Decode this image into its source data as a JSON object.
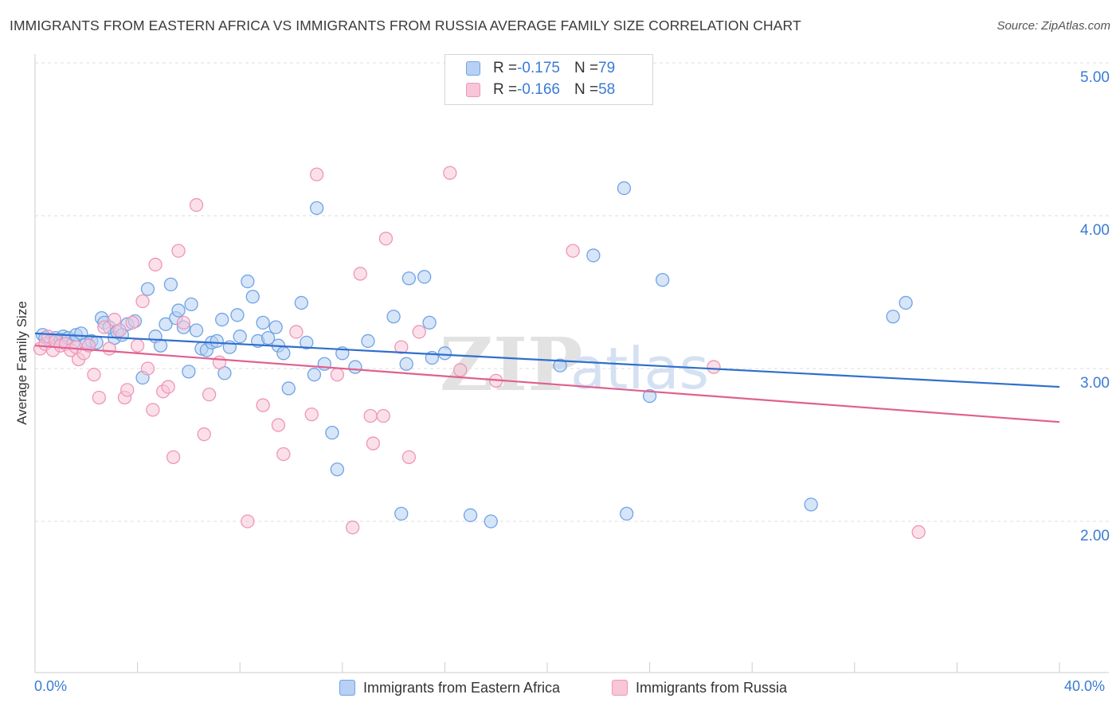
{
  "header": {
    "title": "IMMIGRANTS FROM EASTERN AFRICA VS IMMIGRANTS FROM RUSSIA AVERAGE FAMILY SIZE CORRELATION CHART",
    "source": "Source: ZipAtlas.com"
  },
  "colors": {
    "blue": "#6fa3e6",
    "blue_fill": "#b7d0f3",
    "blue_line": "#2f6fcc",
    "pink": "#ee96b6",
    "pink_fill": "#f8c6d8",
    "pink_line": "#e0608f",
    "axis_text": "#3a7bd5"
  },
  "legend": {
    "blue": {
      "r_label": "R = ",
      "r_value": "-0.175",
      "n_label": "N = ",
      "n_value": "79"
    },
    "pink": {
      "r_label": "R = ",
      "r_value": "-0.166",
      "n_label": "N = ",
      "n_value": "58"
    }
  },
  "chart_data": {
    "type": "scatter",
    "title": "IMMIGRANTS FROM EASTERN AFRICA VS IMMIGRANTS FROM RUSSIA AVERAGE FAMILY SIZE CORRELATION CHART",
    "xlabel": "",
    "ylabel": "Average Family Size",
    "xlim": [
      0,
      40
    ],
    "ylim": [
      1,
      5.1
    ],
    "x_tick_labels": [
      "0.0%",
      "40.0%"
    ],
    "y_ticks": [
      2,
      3,
      4,
      5
    ],
    "y_tick_labels": [
      "2.00",
      "3.00",
      "4.00",
      "5.00"
    ],
    "grid": "horizontal dashed",
    "watermark": "ZIPatlas",
    "series": [
      {
        "name": "Immigrants from Eastern Africa",
        "color": "#6fa3e6",
        "trend": {
          "x": [
            0,
            40
          ],
          "y": [
            3.23,
            2.88
          ]
        },
        "points": [
          [
            0.3,
            3.22
          ],
          [
            0.4,
            3.2
          ],
          [
            0.6,
            3.18
          ],
          [
            0.8,
            3.2
          ],
          [
            1.0,
            3.19
          ],
          [
            1.1,
            3.21
          ],
          [
            1.3,
            3.2
          ],
          [
            1.5,
            3.17
          ],
          [
            1.6,
            3.22
          ],
          [
            1.8,
            3.23
          ],
          [
            2.0,
            3.16
          ],
          [
            2.2,
            3.18
          ],
          [
            2.4,
            3.17
          ],
          [
            2.6,
            3.33
          ],
          [
            2.7,
            3.3
          ],
          [
            2.9,
            3.27
          ],
          [
            3.1,
            3.2
          ],
          [
            3.2,
            3.24
          ],
          [
            3.4,
            3.22
          ],
          [
            3.6,
            3.29
          ],
          [
            3.9,
            3.31
          ],
          [
            4.2,
            2.94
          ],
          [
            4.4,
            3.52
          ],
          [
            4.7,
            3.21
          ],
          [
            4.9,
            3.15
          ],
          [
            5.1,
            3.29
          ],
          [
            5.3,
            3.55
          ],
          [
            5.5,
            3.33
          ],
          [
            5.6,
            3.38
          ],
          [
            5.8,
            3.27
          ],
          [
            6.0,
            2.98
          ],
          [
            6.1,
            3.42
          ],
          [
            6.3,
            3.25
          ],
          [
            6.5,
            3.13
          ],
          [
            6.7,
            3.12
          ],
          [
            6.9,
            3.17
          ],
          [
            7.1,
            3.18
          ],
          [
            7.3,
            3.32
          ],
          [
            7.4,
            2.97
          ],
          [
            7.6,
            3.14
          ],
          [
            7.9,
            3.35
          ],
          [
            8.0,
            3.21
          ],
          [
            8.3,
            3.57
          ],
          [
            8.5,
            3.47
          ],
          [
            8.7,
            3.18
          ],
          [
            8.9,
            3.3
          ],
          [
            9.1,
            3.2
          ],
          [
            9.4,
            3.27
          ],
          [
            9.5,
            3.15
          ],
          [
            9.7,
            3.1
          ],
          [
            9.9,
            2.87
          ],
          [
            10.4,
            3.43
          ],
          [
            10.6,
            3.17
          ],
          [
            10.9,
            2.96
          ],
          [
            11.0,
            4.05
          ],
          [
            11.3,
            3.03
          ],
          [
            11.6,
            2.58
          ],
          [
            11.8,
            2.34
          ],
          [
            12.0,
            3.1
          ],
          [
            12.5,
            3.01
          ],
          [
            13.0,
            3.18
          ],
          [
            14.0,
            3.34
          ],
          [
            14.3,
            2.05
          ],
          [
            14.5,
            3.03
          ],
          [
            14.6,
            3.59
          ],
          [
            15.2,
            3.6
          ],
          [
            15.4,
            3.3
          ],
          [
            15.5,
            3.07
          ],
          [
            16.0,
            3.1
          ],
          [
            17.0,
            2.04
          ],
          [
            17.8,
            2.0
          ],
          [
            20.5,
            3.02
          ],
          [
            21.8,
            3.74
          ],
          [
            23.0,
            4.18
          ],
          [
            23.1,
            2.05
          ],
          [
            24.0,
            2.82
          ],
          [
            24.5,
            3.58
          ],
          [
            30.3,
            2.11
          ],
          [
            33.5,
            3.34
          ],
          [
            34.0,
            3.43
          ]
        ]
      },
      {
        "name": "Immigrants from Russia",
        "color": "#ee96b6",
        "trend": {
          "x": [
            0,
            40
          ],
          "y": [
            3.15,
            2.65
          ]
        },
        "points": [
          [
            0.2,
            3.13
          ],
          [
            0.4,
            3.16
          ],
          [
            0.5,
            3.21
          ],
          [
            0.7,
            3.12
          ],
          [
            0.8,
            3.18
          ],
          [
            1.0,
            3.15
          ],
          [
            1.2,
            3.16
          ],
          [
            1.4,
            3.12
          ],
          [
            1.6,
            3.14
          ],
          [
            1.7,
            3.06
          ],
          [
            1.9,
            3.1
          ],
          [
            2.1,
            3.15
          ],
          [
            2.3,
            2.96
          ],
          [
            2.5,
            2.81
          ],
          [
            2.7,
            3.27
          ],
          [
            2.9,
            3.13
          ],
          [
            3.1,
            3.32
          ],
          [
            3.3,
            3.25
          ],
          [
            3.5,
            2.81
          ],
          [
            3.6,
            2.86
          ],
          [
            3.8,
            3.3
          ],
          [
            4.0,
            3.15
          ],
          [
            4.2,
            3.44
          ],
          [
            4.4,
            3.0
          ],
          [
            4.6,
            2.73
          ],
          [
            4.7,
            3.68
          ],
          [
            5.0,
            2.85
          ],
          [
            5.2,
            2.88
          ],
          [
            5.4,
            2.42
          ],
          [
            5.6,
            3.77
          ],
          [
            5.8,
            3.3
          ],
          [
            6.3,
            4.07
          ],
          [
            6.6,
            2.57
          ],
          [
            6.8,
            2.83
          ],
          [
            7.2,
            3.04
          ],
          [
            8.3,
            2.0
          ],
          [
            8.9,
            2.76
          ],
          [
            9.5,
            2.63
          ],
          [
            9.7,
            2.44
          ],
          [
            10.2,
            3.24
          ],
          [
            10.8,
            2.7
          ],
          [
            11.0,
            4.27
          ],
          [
            11.8,
            2.96
          ],
          [
            12.4,
            1.96
          ],
          [
            12.7,
            3.62
          ],
          [
            13.1,
            2.69
          ],
          [
            13.2,
            2.51
          ],
          [
            13.6,
            2.69
          ],
          [
            13.7,
            3.85
          ],
          [
            14.3,
            3.14
          ],
          [
            14.6,
            2.42
          ],
          [
            15.0,
            3.24
          ],
          [
            16.2,
            4.28
          ],
          [
            16.6,
            2.99
          ],
          [
            18.0,
            2.92
          ],
          [
            21.0,
            3.77
          ],
          [
            26.5,
            3.01
          ],
          [
            34.5,
            1.93
          ]
        ]
      }
    ]
  },
  "bottom_legend": {
    "blue_label": "Immigrants from Eastern Africa",
    "pink_label": "Immigrants from Russia"
  }
}
